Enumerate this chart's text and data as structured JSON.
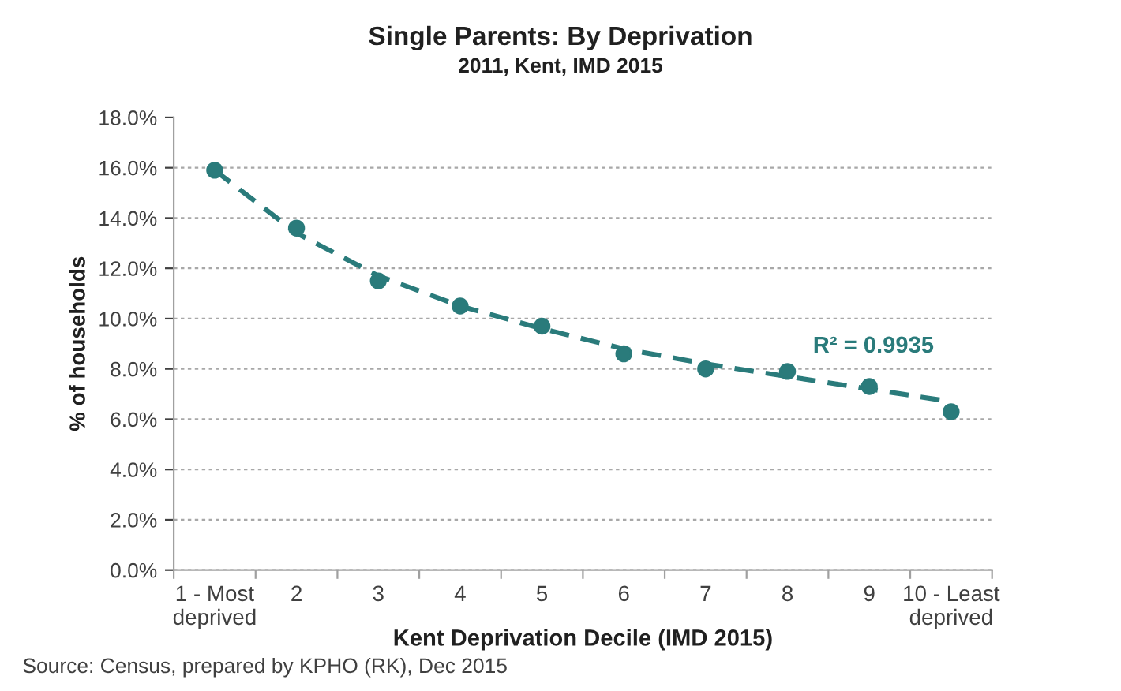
{
  "chart_data": {
    "type": "scatter",
    "title": "Single Parents: By Deprivation",
    "subtitle": "2011, Kent, IMD 2015",
    "xlabel": "Kent Deprivation Decile (IMD 2015)",
    "ylabel": "% of households",
    "categories": [
      "1 - Most\ndeprived",
      "2",
      "3",
      "4",
      "5",
      "6",
      "7",
      "8",
      "9",
      "10 - Least\ndeprived"
    ],
    "series": [
      {
        "color": "#2a7b7b",
        "marker": "circle",
        "values": [
          15.9,
          13.6,
          11.5,
          10.5,
          9.7,
          8.6,
          8.0,
          7.9,
          7.3,
          6.3
        ]
      },
      {
        "type": "line",
        "color": "#2a7b7b",
        "line_style": "dashed",
        "marker": "none",
        "values": [
          15.9,
          13.4,
          11.7,
          10.5,
          9.6,
          8.8,
          8.2,
          7.7,
          7.2,
          6.7
        ]
      }
    ],
    "ylim": [
      0,
      18
    ],
    "yticks": [
      {
        "value": 0,
        "label": "0.0%"
      },
      {
        "value": 2,
        "label": "2.0%"
      },
      {
        "value": 4,
        "label": "4.0%"
      },
      {
        "value": 6,
        "label": "6.0%"
      },
      {
        "value": 8,
        "label": "8.0%"
      },
      {
        "value": 10,
        "label": "10.0%"
      },
      {
        "value": 12,
        "label": "12.0%"
      },
      {
        "value": 14,
        "label": "14.0%"
      },
      {
        "value": 16,
        "label": "16.0%"
      },
      {
        "value": 18,
        "label": "18.0%"
      }
    ],
    "grid": "y",
    "legend": false,
    "annotations": [
      "R² = 0.9935",
      "Source: Census, prepared by KPHO (RK), Dec 2015"
    ]
  }
}
